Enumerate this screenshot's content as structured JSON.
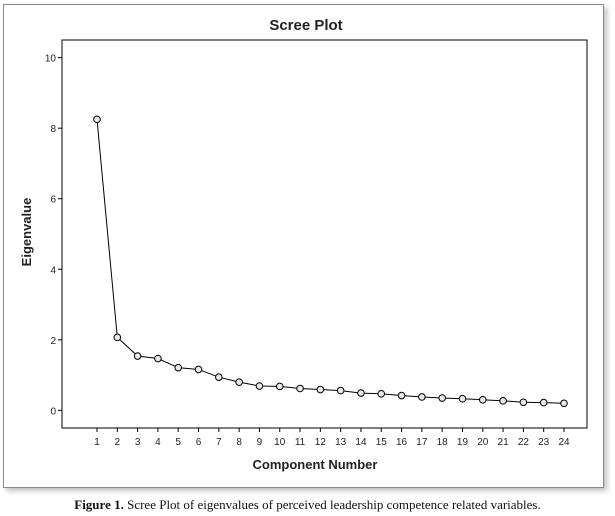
{
  "chart_data": {
    "type": "line",
    "title": "Scree Plot",
    "xlabel": "Component Number",
    "ylabel": "Eigenvalue",
    "x": [
      1,
      2,
      3,
      4,
      5,
      6,
      7,
      8,
      9,
      10,
      11,
      12,
      13,
      14,
      15,
      16,
      17,
      18,
      19,
      20,
      21,
      22,
      23,
      24
    ],
    "series": [
      {
        "values": [
          8.25,
          2.07,
          1.54,
          1.47,
          1.21,
          1.16,
          0.94,
          0.8,
          0.69,
          0.68,
          0.62,
          0.59,
          0.56,
          0.49,
          0.47,
          0.42,
          0.38,
          0.35,
          0.33,
          0.3,
          0.27,
          0.23,
          0.22,
          0.2
        ]
      }
    ],
    "ylim": [
      -0.5,
      10.5
    ],
    "yticks": [
      0,
      2,
      4,
      6,
      8,
      10
    ],
    "xticks": [
      "1",
      "2",
      "3",
      "4",
      "5",
      "6",
      "7",
      "8",
      "9",
      "10",
      "11",
      "12",
      "13",
      "14",
      "15",
      "16",
      "17",
      "18",
      "19",
      "20",
      "21",
      "22",
      "23",
      "24"
    ],
    "grid": false,
    "marker": "circle"
  },
  "caption": {
    "label": "Figure 1.",
    "text": " Scree Plot of eigenvalues of perceived leadership competence related variables."
  }
}
